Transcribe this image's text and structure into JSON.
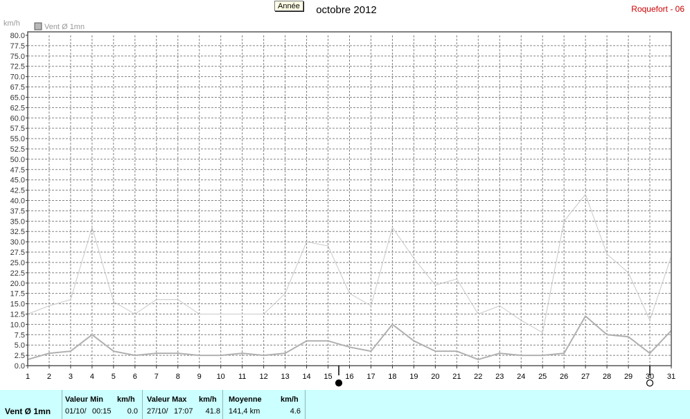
{
  "toolbar": {
    "year_button": "Année"
  },
  "header": {
    "title": "octobre 2012",
    "station": "Roquefort - 06"
  },
  "chart_data": {
    "type": "line",
    "ylabel": "km/h",
    "ylim": [
      0,
      80
    ],
    "y_ticks": [
      "0.0",
      "2.5",
      "5.0",
      "7.5",
      "10.0",
      "12.5",
      "15.0",
      "17.5",
      "20.0",
      "22.5",
      "25.0",
      "27.5",
      "30.0",
      "32.5",
      "35.0",
      "37.5",
      "40.0",
      "42.5",
      "45.0",
      "47.5",
      "50.0",
      "52.5",
      "55.0",
      "57.5",
      "60.0",
      "62.5",
      "65.0",
      "67.5",
      "70.0",
      "72.5",
      "75.0",
      "77.5",
      "80.0"
    ],
    "x": [
      "1",
      "2",
      "3",
      "4",
      "5",
      "6",
      "7",
      "8",
      "9",
      "10",
      "11",
      "12",
      "13",
      "14",
      "15",
      "16",
      "17",
      "18",
      "19",
      "20",
      "21",
      "22",
      "23",
      "24",
      "25",
      "26",
      "27",
      "28",
      "29",
      "30",
      "31"
    ],
    "grid": true,
    "legend": {
      "label": "Vent Ø 1mn",
      "position": "top-left",
      "color": "#b8b8b8"
    },
    "series": [
      {
        "color": "#c8c8c8",
        "values": [
          12.5,
          14.5,
          16,
          33.5,
          15.5,
          12.5,
          16,
          16,
          12.5,
          12.5,
          12.5,
          12.5,
          17.5,
          30,
          29,
          17.5,
          14.5,
          33.5,
          26,
          19.5,
          21,
          12.5,
          14.5,
          11,
          8,
          35,
          41.5,
          27,
          22.5,
          11,
          26.5
        ]
      },
      {
        "color": "#b0b0b0",
        "values": [
          1.5,
          3,
          3.5,
          7.5,
          3.5,
          2.5,
          3,
          3,
          2.5,
          2.5,
          3,
          2.5,
          3,
          6,
          6,
          4.5,
          3.5,
          10,
          6,
          3.5,
          3.5,
          1.5,
          3,
          2.5,
          2.5,
          3,
          12,
          7.5,
          7,
          3,
          8.5
        ]
      }
    ],
    "moon_markers": [
      {
        "phase": "new",
        "day": 15.5,
        "color": "#000000"
      },
      {
        "phase": "full",
        "day": 30,
        "color": "#000000"
      }
    ]
  },
  "summary": {
    "name": "Vent Ø 1mn",
    "min": {
      "label": "Valeur Min",
      "unit": "km/h",
      "date": "01/10/",
      "time": "00:15",
      "value": "0.0"
    },
    "max": {
      "label": "Valeur Max",
      "unit": "km/h",
      "date": "27/10/",
      "time": "17:07",
      "value": "41.8"
    },
    "mean": {
      "label": "Moyenne",
      "unit": "km/h",
      "distance": "141,4 km",
      "value": "4.6"
    }
  }
}
